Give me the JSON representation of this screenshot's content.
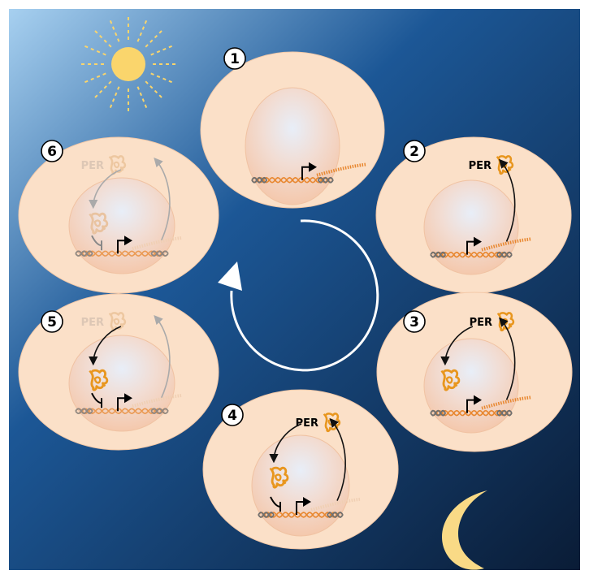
{
  "figure": {
    "protein_label": "PER",
    "stages": [
      {
        "number": "1",
        "show_per": false,
        "faded": false,
        "transcribing": true,
        "exporting": false,
        "importing": false,
        "repressing": false
      },
      {
        "number": "2",
        "show_per": true,
        "faded": false,
        "transcribing": true,
        "exporting": true,
        "importing": false,
        "repressing": false
      },
      {
        "number": "3",
        "show_per": true,
        "faded": false,
        "transcribing": true,
        "exporting": true,
        "importing": true,
        "repressing": false
      },
      {
        "number": "4",
        "show_per": true,
        "faded": false,
        "transcribing": false,
        "exporting": true,
        "importing": true,
        "repressing": true
      },
      {
        "number": "5",
        "show_per": true,
        "faded": true,
        "transcribing": false,
        "exporting": false,
        "importing": true,
        "repressing": true
      },
      {
        "number": "6",
        "show_per": true,
        "faded": true,
        "transcribing": false,
        "exporting": false,
        "importing": false,
        "repressing": true
      }
    ],
    "icons": [
      "sun-icon",
      "moon-icon",
      "cycle-arrow-icon",
      "promoter-flag-icon",
      "per-protein-icon"
    ],
    "colors": {
      "sky_top_left": "#a7d0f0",
      "sky_mid": "#1c5796",
      "sky_bottom_right": "#0a1c36",
      "cell": "#fbe0c8",
      "cell_edge": "#f3c9a8",
      "nucleus": "#f4ccb2",
      "nucleus_glow": "#e6ecf7",
      "dna_orange": "#e8872f",
      "dna_gray": "#707070",
      "protein": "#e8961e",
      "sun": "#fad56c",
      "moon": "#f9da86"
    }
  }
}
